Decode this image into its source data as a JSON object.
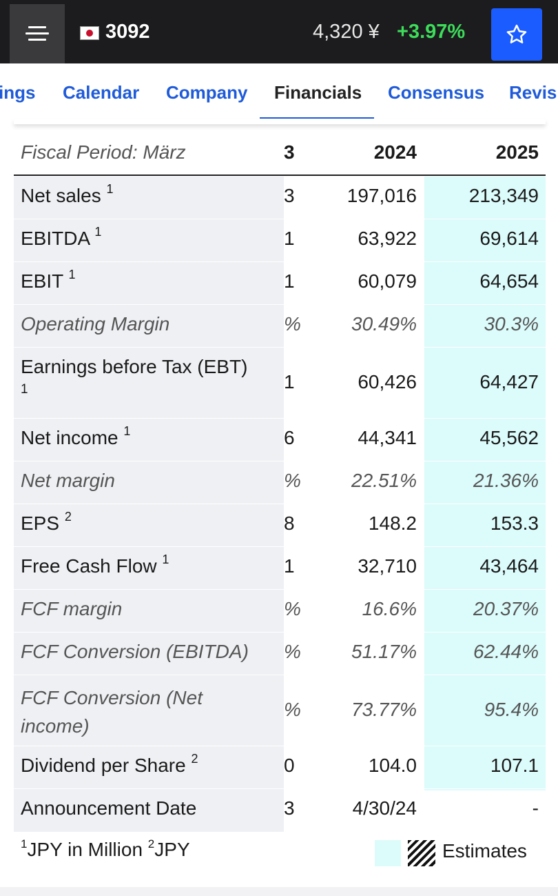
{
  "header": {
    "ticker": "3092",
    "price": "4,320 ¥",
    "change": "+3.97%",
    "icons": {
      "menu": "hamburger-icon",
      "flag": "japan-flag-icon",
      "watch": "star-icon"
    },
    "colors": {
      "bar": "#1c1c1e",
      "change": "#3ddc5a",
      "watch_button": "#1a5cff"
    }
  },
  "tabs": [
    {
      "label": "ings"
    },
    {
      "label": "Calendar"
    },
    {
      "label": "Company"
    },
    {
      "label": "Financials"
    },
    {
      "label": "Consensus"
    },
    {
      "label": "Revisi"
    }
  ],
  "active_tab": "Financials",
  "table": {
    "header": {
      "label": "Fiscal Period: März",
      "col_cut": "3",
      "col_2024": "2024",
      "col_2025": "2025"
    },
    "rows": [
      {
        "label": "Net sales",
        "sup": "1",
        "cut": "3",
        "v2024": "197,016",
        "v2025": "213,349",
        "italic": false
      },
      {
        "label": "EBITDA",
        "sup": "1",
        "cut": "1",
        "v2024": "63,922",
        "v2025": "69,614",
        "italic": false
      },
      {
        "label": "EBIT",
        "sup": "1",
        "cut": "1",
        "v2024": "60,079",
        "v2025": "64,654",
        "italic": false
      },
      {
        "label": "Operating Margin",
        "sup": "",
        "cut": "%",
        "v2024": "30.49%",
        "v2025": "30.3%",
        "italic": true
      },
      {
        "label": "Earnings before Tax (EBT)",
        "sup": "1",
        "cut": "1",
        "v2024": "60,426",
        "v2025": "64,427",
        "italic": false
      },
      {
        "label": "Net income",
        "sup": "1",
        "cut": "6",
        "v2024": "44,341",
        "v2025": "45,562",
        "italic": false
      },
      {
        "label": "Net margin",
        "sup": "",
        "cut": "%",
        "v2024": "22.51%",
        "v2025": "21.36%",
        "italic": true
      },
      {
        "label": "EPS",
        "sup": "2",
        "cut": "8",
        "v2024": "148.2",
        "v2025": "153.3",
        "italic": false
      },
      {
        "label": "Free Cash Flow",
        "sup": "1",
        "cut": "1",
        "v2024": "32,710",
        "v2025": "43,464",
        "italic": false
      },
      {
        "label": "FCF margin",
        "sup": "",
        "cut": "%",
        "v2024": "16.6%",
        "v2025": "20.37%",
        "italic": true
      },
      {
        "label": "FCF Conversion (EBITDA)",
        "sup": "",
        "cut": "%",
        "v2024": "51.17%",
        "v2025": "62.44%",
        "italic": true
      },
      {
        "label": "FCF Conversion (Net income)",
        "sup": "",
        "cut": "%",
        "v2024": "73.77%",
        "v2025": "95.4%",
        "italic": true
      },
      {
        "label": "Dividend per Share",
        "sup": "2",
        "cut": "0",
        "v2024": "104.0",
        "v2025": "107.1",
        "italic": false
      },
      {
        "label": "Announcement Date",
        "sup": "",
        "cut": "3",
        "v2024": "4/30/24",
        "v2025": "-",
        "italic": false
      }
    ]
  },
  "footer": {
    "note_sup1": "1",
    "note_text1": "JPY in Million ",
    "note_sup2": "2",
    "note_text2": "JPY",
    "legend_label": "Estimates",
    "colors": {
      "estimate_fill": "#dcfbfb"
    }
  }
}
